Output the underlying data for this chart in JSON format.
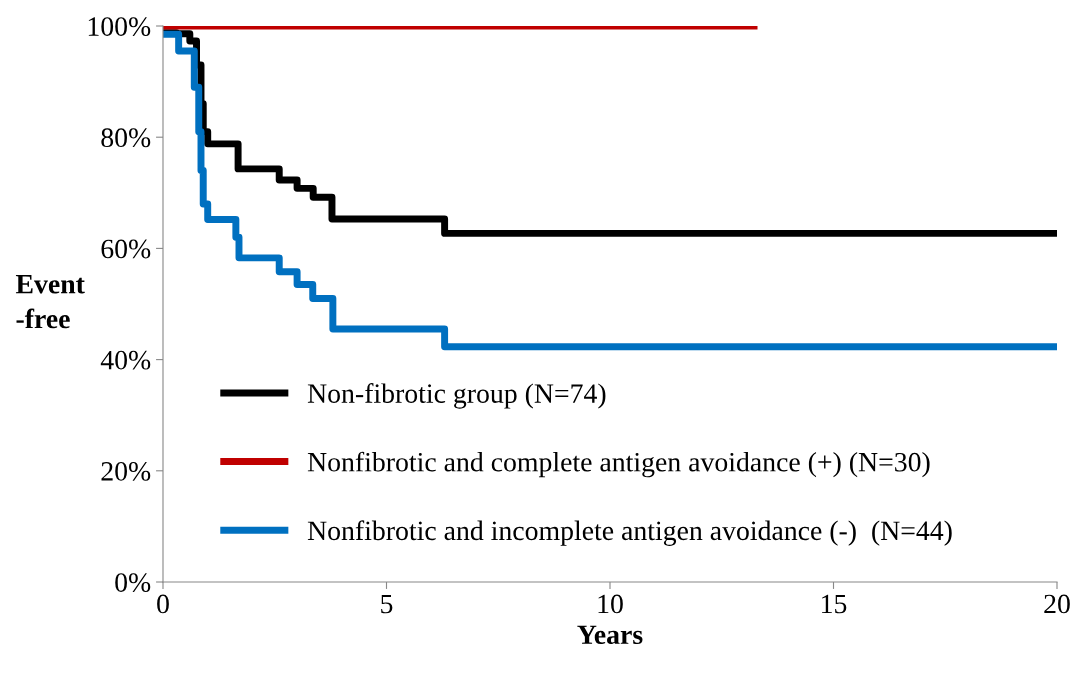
{
  "chart_data": {
    "type": "step",
    "xlabel": "Years",
    "ylabel": "Event\n-free",
    "xlim": [
      0,
      20
    ],
    "xticks": [
      0,
      5,
      10,
      15,
      20
    ],
    "ylim": [
      0,
      100
    ],
    "yticks": [
      {
        "value": 0,
        "label": "0%"
      },
      {
        "value": 20,
        "label": "20%"
      },
      {
        "value": 40,
        "label": "40%"
      },
      {
        "value": 60,
        "label": "60%"
      },
      {
        "value": 80,
        "label": "80%"
      },
      {
        "value": 100,
        "label": "100%"
      }
    ],
    "grid": false,
    "legend": "bottom left",
    "line_style": "solid",
    "series": [
      {
        "name": "Non-fibrotic group (N=74)",
        "color": "#000000",
        "x": [
          0,
          0.3,
          0.6,
          0.75,
          0.85,
          0.9,
          1.0,
          1.68,
          2.6,
          3.0,
          3.36,
          3.78,
          6.3,
          20
        ],
        "values": [
          98.8,
          98.6,
          97.3,
          93,
          86,
          81,
          78.8,
          74.3,
          72.3,
          70.8,
          69.2,
          65.3,
          62.7,
          62.7
        ]
      },
      {
        "name": "Nonfibrotic and complete antigen avoidance (+) (N=30)",
        "color": "#c00000",
        "x": [
          0,
          13.3
        ],
        "values": [
          100,
          100
        ]
      },
      {
        "name": "Nonfibrotic and incomplete antigen avoidance (-)  (N=44)",
        "color": "#0070c0",
        "x": [
          0,
          0.35,
          0.7,
          0.8,
          0.85,
          0.9,
          1.0,
          1.63,
          1.7,
          2.6,
          3.0,
          3.35,
          3.8,
          6.3,
          20
        ],
        "values": [
          98.5,
          95.5,
          89,
          81,
          74,
          68,
          65.2,
          62,
          58.3,
          55.8,
          53.5,
          51,
          45.5,
          42.3,
          42.3
        ]
      }
    ]
  }
}
